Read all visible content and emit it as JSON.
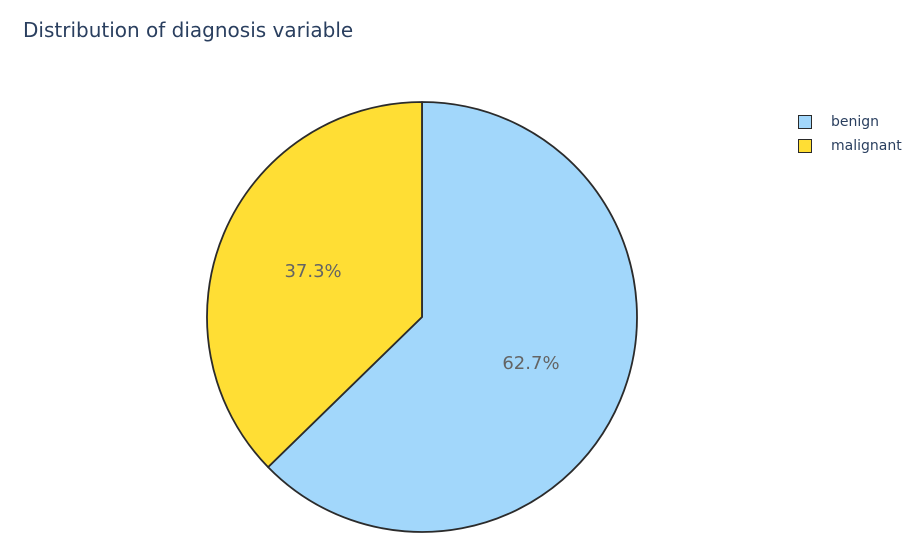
{
  "chart_data": {
    "type": "pie",
    "title": "Distribution of diagnosis variable",
    "labels": [
      "benign",
      "malignant"
    ],
    "values": [
      62.7,
      37.3
    ],
    "text_labels": [
      "62.7%",
      "37.3%"
    ],
    "colors": [
      "#a2d7fb",
      "#ffde34"
    ],
    "slice_outline_color": "#2b2b2b",
    "start_angle_deg": 0,
    "direction": "clockwise",
    "legend_position": "top-right",
    "label_color": "#646464"
  },
  "legend": {
    "items": [
      {
        "label": "benign",
        "color": "#a2d7fb"
      },
      {
        "label": "malignant",
        "color": "#ffde34"
      }
    ]
  }
}
